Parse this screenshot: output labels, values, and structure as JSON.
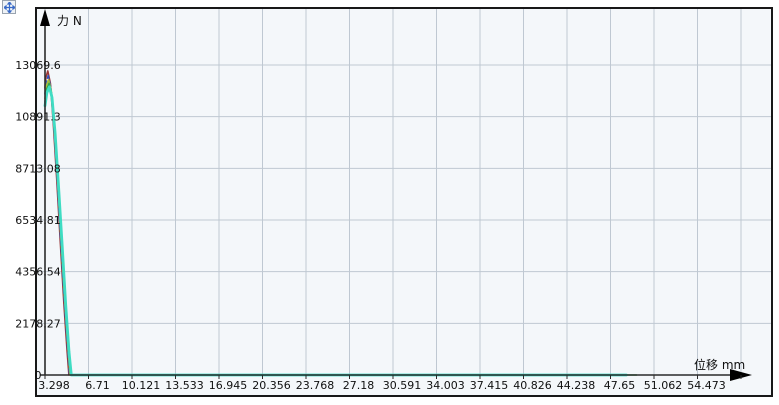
{
  "toolbar": {
    "pan_button": {
      "icon": "pan-move-icon",
      "color": "#3a6bc8"
    }
  },
  "chart_data": {
    "type": "line",
    "title": "",
    "plot_bg": "#f4f7fa",
    "grid_color": "#bfc8d2",
    "axis_color": "#2a2a2a",
    "x_axis": {
      "title": "位移 mm",
      "unit": "mm",
      "tick_labels": [
        "3.298",
        "6.71",
        "10.121",
        "13.533",
        "16.945",
        "20.356",
        "23.768",
        "27.18",
        "30.591",
        "34.003",
        "37.415",
        "40.826",
        "44.238",
        "47.65",
        "51.062",
        "54.473"
      ],
      "range": [
        3.298,
        57.9
      ]
    },
    "y_axis": {
      "title": "力 N",
      "unit": "N",
      "tick_labels": [
        "0",
        "2178.27",
        "4356.54",
        "6534.81",
        "8713.08",
        "10891.3",
        "13069.6"
      ],
      "range": [
        0,
        13069.6
      ]
    },
    "series": [
      {
        "name": "curve-dark-red",
        "color": "#9a3636",
        "width": 1.6,
        "dash": null,
        "points": [
          [
            3.298,
            12100
          ],
          [
            3.37,
            12550
          ],
          [
            3.52,
            12820
          ],
          [
            3.72,
            12300
          ],
          [
            3.95,
            10600
          ],
          [
            4.22,
            8200
          ],
          [
            4.5,
            5600
          ],
          [
            4.78,
            3000
          ],
          [
            5.03,
            1000
          ],
          [
            5.17,
            0
          ]
        ]
      },
      {
        "name": "curve-blue",
        "color": "#3350b8",
        "width": 1.6,
        "dash": "5,3",
        "points": [
          [
            3.298,
            11850
          ],
          [
            3.39,
            12350
          ],
          [
            3.55,
            12620
          ],
          [
            3.76,
            12120
          ],
          [
            3.99,
            10500
          ],
          [
            4.26,
            8150
          ],
          [
            4.54,
            5600
          ],
          [
            4.82,
            3050
          ],
          [
            5.08,
            1050
          ],
          [
            5.22,
            0
          ]
        ]
      },
      {
        "name": "curve-olive",
        "color": "#a9bc3a",
        "width": 1.6,
        "dash": null,
        "points": [
          [
            3.298,
            11650
          ],
          [
            3.41,
            12200
          ],
          [
            3.58,
            12450
          ],
          [
            3.79,
            11980
          ],
          [
            4.03,
            10400
          ],
          [
            4.3,
            8100
          ],
          [
            4.58,
            5570
          ],
          [
            4.86,
            3020
          ],
          [
            5.12,
            1020
          ],
          [
            5.27,
            0
          ]
        ]
      },
      {
        "name": "curve-green",
        "color": "#33a24d",
        "width": 1.6,
        "dash": null,
        "points": [
          [
            3.298,
            11500
          ],
          [
            3.43,
            12050
          ],
          [
            3.61,
            12300
          ],
          [
            3.82,
            11850
          ],
          [
            4.06,
            10300
          ],
          [
            4.33,
            8050
          ],
          [
            4.61,
            5540
          ],
          [
            4.89,
            3000
          ],
          [
            5.15,
            1000
          ],
          [
            5.31,
            0
          ],
          [
            49.7,
            0
          ]
        ]
      },
      {
        "name": "curve-cyan",
        "color": "#3fdcc3",
        "width": 2.8,
        "dash": null,
        "points": [
          [
            3.298,
            11350
          ],
          [
            3.45,
            11900
          ],
          [
            3.64,
            12150
          ],
          [
            3.85,
            11700
          ],
          [
            4.09,
            10200
          ],
          [
            4.36,
            7980
          ],
          [
            4.64,
            5500
          ],
          [
            4.92,
            2960
          ],
          [
            5.18,
            980
          ],
          [
            5.36,
            0
          ],
          [
            48.9,
            0
          ]
        ]
      }
    ]
  }
}
